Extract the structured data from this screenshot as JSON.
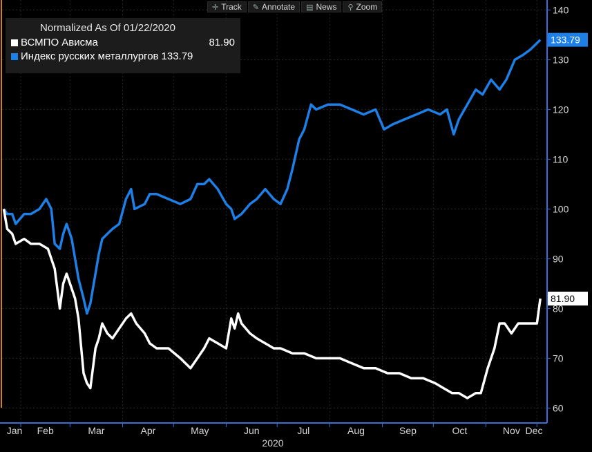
{
  "toolbar": {
    "track_label": "Track",
    "annotate_label": "Annotate",
    "news_label": "News",
    "zoom_label": "Zoom"
  },
  "legend": {
    "title": "Normalized As Of 01/22/2020",
    "items": [
      {
        "name": "ВСМПО Ависма",
        "value": "81.90",
        "color": "#ffffff"
      },
      {
        "name": "Индекс русских металлургов",
        "value": "133.79",
        "color": "#1e7fe6"
      }
    ]
  },
  "colors": {
    "background": "#000000",
    "axis_right": "#3a6fd8",
    "axis_left": "#d4830e"
  },
  "chart_data": {
    "type": "line",
    "xlabel": "2020",
    "ylim": [
      57,
      142
    ],
    "yticks": [
      60,
      70,
      80,
      90,
      100,
      110,
      120,
      130,
      140
    ],
    "xtick_labels": [
      "Jan",
      "Feb",
      "Mar",
      "Apr",
      "May",
      "Jun",
      "Jul",
      "Aug",
      "Sep",
      "Oct",
      "Nov",
      "Dec"
    ],
    "last_value_labels": [
      "81.90",
      "133.79"
    ],
    "series": [
      {
        "name": "ВСМПО Ависма",
        "color": "#ffffff",
        "points": [
          [
            "2020-01-22",
            100
          ],
          [
            "2020-01-24",
            96
          ],
          [
            "2020-01-27",
            95
          ],
          [
            "2020-01-29",
            93
          ],
          [
            "2020-02-03",
            94
          ],
          [
            "2020-02-07",
            93
          ],
          [
            "2020-02-12",
            93
          ],
          [
            "2020-02-17",
            92
          ],
          [
            "2020-02-21",
            88
          ],
          [
            "2020-02-24",
            80
          ],
          [
            "2020-02-26",
            85
          ],
          [
            "2020-02-28",
            87
          ],
          [
            "2020-03-02",
            84
          ],
          [
            "2020-03-04",
            82
          ],
          [
            "2020-03-06",
            78
          ],
          [
            "2020-03-09",
            67
          ],
          [
            "2020-03-11",
            65
          ],
          [
            "2020-03-13",
            64
          ],
          [
            "2020-03-16",
            72
          ],
          [
            "2020-03-18",
            74
          ],
          [
            "2020-03-20",
            77
          ],
          [
            "2020-03-23",
            75
          ],
          [
            "2020-03-26",
            74
          ],
          [
            "2020-03-30",
            76
          ],
          [
            "2020-04-03",
            78
          ],
          [
            "2020-04-06",
            79
          ],
          [
            "2020-04-09",
            77
          ],
          [
            "2020-04-14",
            75
          ],
          [
            "2020-04-17",
            73
          ],
          [
            "2020-04-21",
            72
          ],
          [
            "2020-04-28",
            72
          ],
          [
            "2020-05-05",
            70
          ],
          [
            "2020-05-11",
            68
          ],
          [
            "2020-05-15",
            70
          ],
          [
            "2020-05-19",
            72
          ],
          [
            "2020-05-22",
            74
          ],
          [
            "2020-05-27",
            73
          ],
          [
            "2020-06-01",
            72
          ],
          [
            "2020-06-04",
            78
          ],
          [
            "2020-06-06",
            76
          ],
          [
            "2020-06-08",
            79
          ],
          [
            "2020-06-10",
            77
          ],
          [
            "2020-06-15",
            75
          ],
          [
            "2020-06-19",
            74
          ],
          [
            "2020-06-24",
            73
          ],
          [
            "2020-06-29",
            72
          ],
          [
            "2020-07-03",
            72
          ],
          [
            "2020-07-10",
            71
          ],
          [
            "2020-07-17",
            71
          ],
          [
            "2020-07-24",
            70
          ],
          [
            "2020-07-31",
            70
          ],
          [
            "2020-08-07",
            70
          ],
          [
            "2020-08-14",
            69
          ],
          [
            "2020-08-21",
            68
          ],
          [
            "2020-08-28",
            68
          ],
          [
            "2020-09-04",
            67
          ],
          [
            "2020-09-11",
            67
          ],
          [
            "2020-09-18",
            66
          ],
          [
            "2020-09-25",
            66
          ],
          [
            "2020-10-02",
            65
          ],
          [
            "2020-10-07",
            64
          ],
          [
            "2020-10-12",
            63
          ],
          [
            "2020-10-16",
            63
          ],
          [
            "2020-10-21",
            62
          ],
          [
            "2020-10-26",
            63
          ],
          [
            "2020-10-29",
            63
          ],
          [
            "2020-11-02",
            68
          ],
          [
            "2020-11-04",
            70
          ],
          [
            "2020-11-06",
            72
          ],
          [
            "2020-11-09",
            77
          ],
          [
            "2020-11-12",
            77
          ],
          [
            "2020-11-16",
            75
          ],
          [
            "2020-11-20",
            77
          ],
          [
            "2020-11-24",
            77
          ],
          [
            "2020-11-27",
            77
          ],
          [
            "2020-12-01",
            77
          ],
          [
            "2020-12-03",
            82
          ]
        ]
      },
      {
        "name": "Индекс русских металлургов",
        "color": "#1e7fe6",
        "points": [
          [
            "2020-01-22",
            100
          ],
          [
            "2020-01-24",
            99
          ],
          [
            "2020-01-27",
            99
          ],
          [
            "2020-01-29",
            97
          ],
          [
            "2020-02-03",
            99
          ],
          [
            "2020-02-07",
            99
          ],
          [
            "2020-02-12",
            100
          ],
          [
            "2020-02-16",
            102
          ],
          [
            "2020-02-19",
            100
          ],
          [
            "2020-02-21",
            93
          ],
          [
            "2020-02-24",
            92
          ],
          [
            "2020-02-26",
            95
          ],
          [
            "2020-02-28",
            97
          ],
          [
            "2020-03-02",
            94
          ],
          [
            "2020-03-04",
            90
          ],
          [
            "2020-03-06",
            86
          ],
          [
            "2020-03-09",
            82
          ],
          [
            "2020-03-11",
            79
          ],
          [
            "2020-03-13",
            81
          ],
          [
            "2020-03-16",
            87
          ],
          [
            "2020-03-18",
            91
          ],
          [
            "2020-03-20",
            94
          ],
          [
            "2020-03-23",
            95
          ],
          [
            "2020-03-26",
            96
          ],
          [
            "2020-03-30",
            97
          ],
          [
            "2020-04-03",
            102
          ],
          [
            "2020-04-06",
            104
          ],
          [
            "2020-04-08",
            100
          ],
          [
            "2020-04-14",
            101
          ],
          [
            "2020-04-17",
            103
          ],
          [
            "2020-04-21",
            103
          ],
          [
            "2020-04-28",
            102
          ],
          [
            "2020-05-05",
            101
          ],
          [
            "2020-05-11",
            102
          ],
          [
            "2020-05-15",
            105
          ],
          [
            "2020-05-19",
            105
          ],
          [
            "2020-05-22",
            106
          ],
          [
            "2020-05-27",
            104
          ],
          [
            "2020-06-01",
            101
          ],
          [
            "2020-06-04",
            100
          ],
          [
            "2020-06-06",
            98
          ],
          [
            "2020-06-10",
            99
          ],
          [
            "2020-06-15",
            101
          ],
          [
            "2020-06-19",
            102
          ],
          [
            "2020-06-24",
            104
          ],
          [
            "2020-06-29",
            102
          ],
          [
            "2020-07-03",
            101
          ],
          [
            "2020-07-07",
            104
          ],
          [
            "2020-07-10",
            108
          ],
          [
            "2020-07-14",
            114
          ],
          [
            "2020-07-17",
            116
          ],
          [
            "2020-07-21",
            121
          ],
          [
            "2020-07-24",
            120
          ],
          [
            "2020-07-31",
            121
          ],
          [
            "2020-08-07",
            121
          ],
          [
            "2020-08-14",
            120
          ],
          [
            "2020-08-21",
            119
          ],
          [
            "2020-08-28",
            120
          ],
          [
            "2020-09-02",
            116
          ],
          [
            "2020-09-07",
            117
          ],
          [
            "2020-09-14",
            118
          ],
          [
            "2020-09-21",
            119
          ],
          [
            "2020-09-28",
            120
          ],
          [
            "2020-10-05",
            119
          ],
          [
            "2020-10-09",
            120
          ],
          [
            "2020-10-13",
            115
          ],
          [
            "2020-10-16",
            118
          ],
          [
            "2020-10-21",
            121
          ],
          [
            "2020-10-26",
            124
          ],
          [
            "2020-10-30",
            123
          ],
          [
            "2020-11-04",
            126
          ],
          [
            "2020-11-09",
            124
          ],
          [
            "2020-11-13",
            126
          ],
          [
            "2020-11-18",
            130
          ],
          [
            "2020-11-23",
            131
          ],
          [
            "2020-11-27",
            132
          ],
          [
            "2020-12-03",
            134
          ]
        ]
      }
    ]
  }
}
